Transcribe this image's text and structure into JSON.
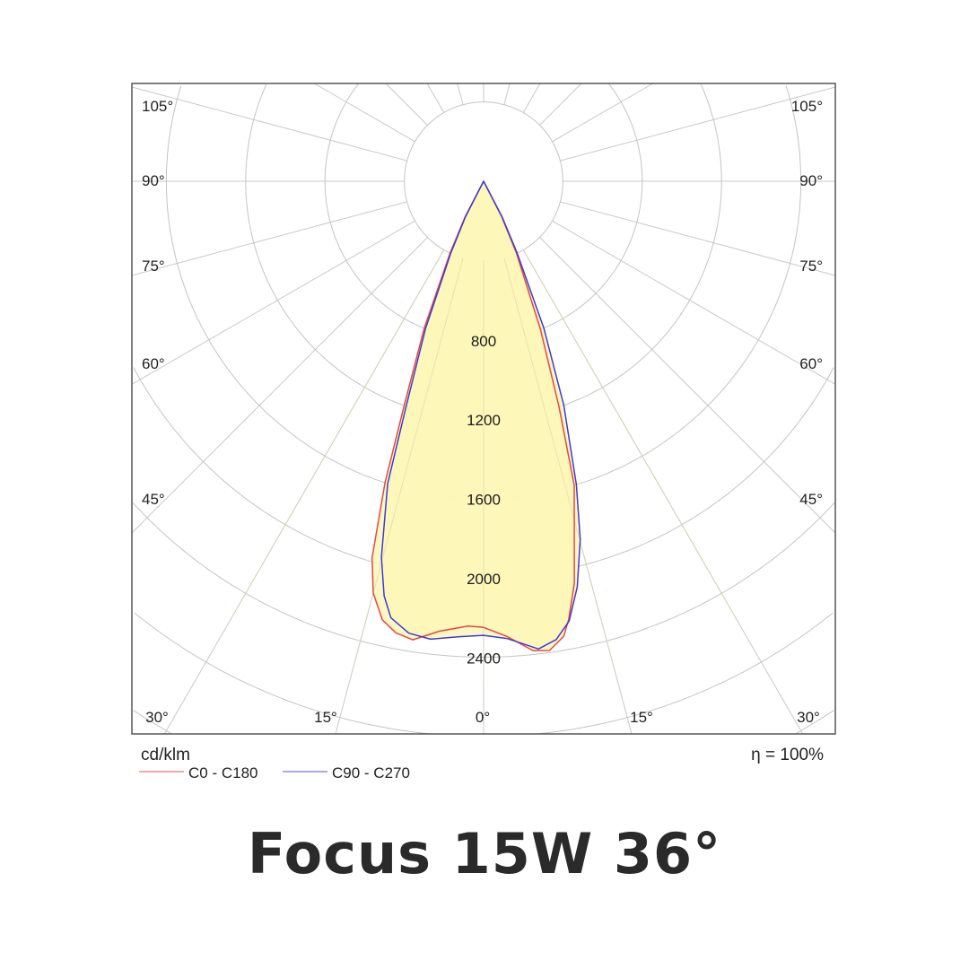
{
  "chart_data": {
    "type": "polar-line",
    "title": "Focus 15W 36°",
    "unit_label": "cd/klm",
    "efficiency_label": "η = 100%",
    "radial_ticks": [
      800,
      1200,
      1600,
      2000,
      2400
    ],
    "radial_grid_step": 400,
    "angle_labels_left": [
      "105°",
      "90°",
      "75°",
      "60°",
      "45°"
    ],
    "angle_labels_right": [
      "105°",
      "90°",
      "75°",
      "60°",
      "45°"
    ],
    "angle_labels_bottom": [
      "30°",
      "15°",
      "0°",
      "15°",
      "30°"
    ],
    "angle_grid_step_deg": 15,
    "fill_color": "#fdf7b8",
    "series": [
      {
        "name": "C0 - C180",
        "color": "#e8473f",
        "legend_color": "#f4a6a8",
        "gamma": [
          -30,
          -27.5,
          -25,
          -22,
          -19.5,
          -18.1,
          -16.5,
          -15,
          -13,
          -11,
          -8.8,
          -5.6,
          -2,
          0,
          3,
          6,
          8,
          10,
          11,
          12.7,
          14.2,
          16.6,
          18.5,
          21,
          24.5,
          27,
          30
        ],
        "intensity": [
          0,
          200,
          400,
          800,
          1200,
          1600,
          1980,
          2150,
          2270,
          2320,
          2340,
          2280,
          2245,
          2250,
          2300,
          2380,
          2390,
          2330,
          2250,
          2080,
          1865,
          1600,
          1200,
          800,
          400,
          200,
          0
        ]
      },
      {
        "name": "C90 - C270",
        "color": "#3b3bd8",
        "legend_color": "#a8a8f4",
        "gamma": [
          -30,
          -27,
          -24.5,
          -21.5,
          -19,
          -17.6,
          -15.2,
          -13.5,
          -12,
          -9.4,
          -6.6,
          -3,
          0,
          3,
          6.7,
          9,
          11,
          13,
          15.1,
          17,
          19.7,
          22.3,
          25,
          27.5,
          30
        ],
        "intensity": [
          0,
          200,
          400,
          800,
          1200,
          1600,
          1965,
          2150,
          2250,
          2310,
          2325,
          2300,
          2290,
          2310,
          2375,
          2340,
          2260,
          2100,
          1870,
          1600,
          1200,
          800,
          400,
          200,
          0
        ]
      }
    ]
  }
}
